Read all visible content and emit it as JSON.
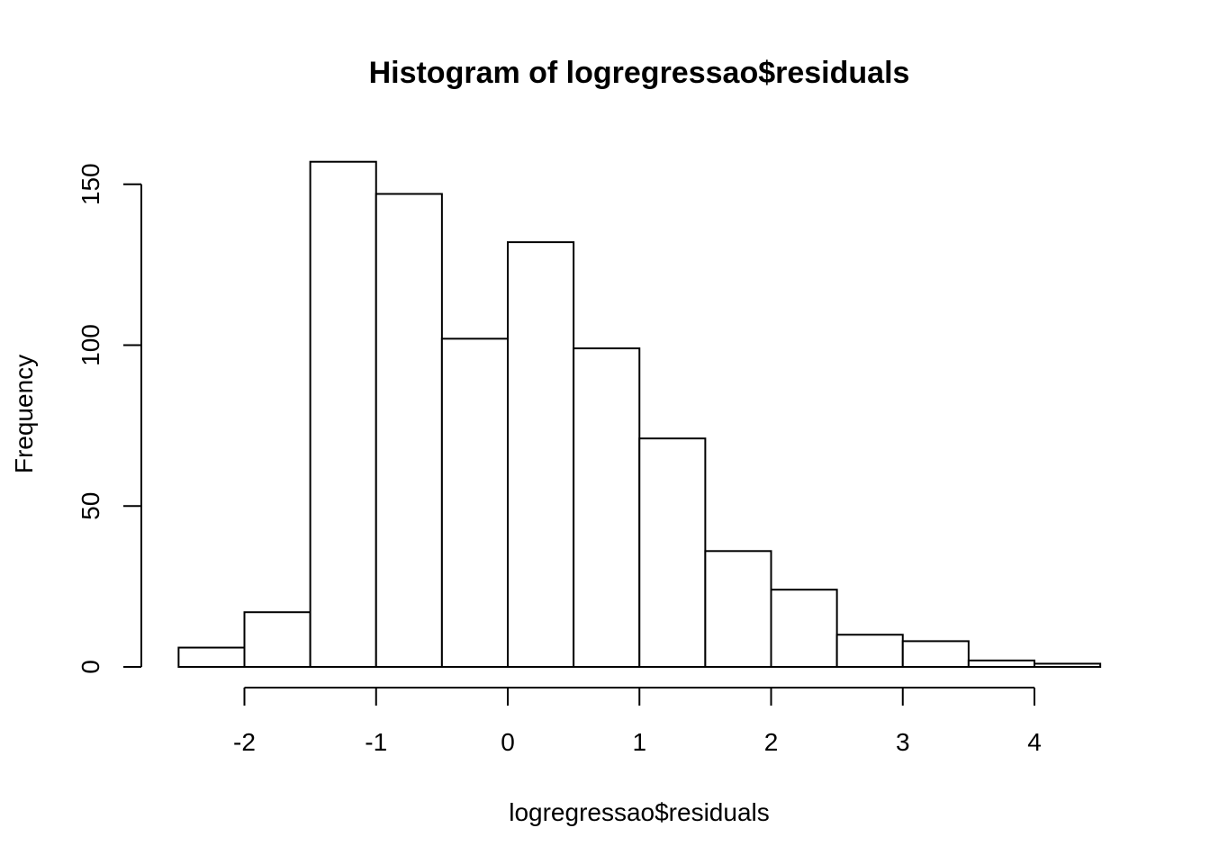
{
  "chart_data": {
    "type": "bar",
    "title": "Histogram of logregressao$residuals",
    "xlabel": "logregressao$residuals",
    "ylabel": "Frequency",
    "bins": [
      {
        "start": -2.5,
        "end": -2.0,
        "count": 6
      },
      {
        "start": -2.0,
        "end": -1.5,
        "count": 17
      },
      {
        "start": -1.5,
        "end": -1.0,
        "count": 157
      },
      {
        "start": -1.0,
        "end": -0.5,
        "count": 147
      },
      {
        "start": -0.5,
        "end": 0.0,
        "count": 102
      },
      {
        "start": 0.0,
        "end": 0.5,
        "count": 132
      },
      {
        "start": 0.5,
        "end": 1.0,
        "count": 99
      },
      {
        "start": 1.0,
        "end": 1.5,
        "count": 71
      },
      {
        "start": 1.5,
        "end": 2.0,
        "count": 36
      },
      {
        "start": 2.0,
        "end": 2.5,
        "count": 24
      },
      {
        "start": 2.5,
        "end": 3.0,
        "count": 10
      },
      {
        "start": 3.0,
        "end": 3.5,
        "count": 8
      },
      {
        "start": 3.5,
        "end": 4.0,
        "count": 2
      },
      {
        "start": 4.0,
        "end": 4.5,
        "count": 1
      }
    ],
    "x_ticks": [
      -2,
      -1,
      0,
      1,
      2,
      3,
      4
    ],
    "x_tick_labels": [
      "-2",
      "-1",
      "0",
      "1",
      "2",
      "3",
      "4"
    ],
    "y_ticks": [
      0,
      50,
      100,
      150
    ],
    "y_tick_labels": [
      "0",
      "50",
      "100",
      "150"
    ],
    "grid": false,
    "bar_fill": "#ffffff",
    "bar_stroke": "#000000"
  }
}
